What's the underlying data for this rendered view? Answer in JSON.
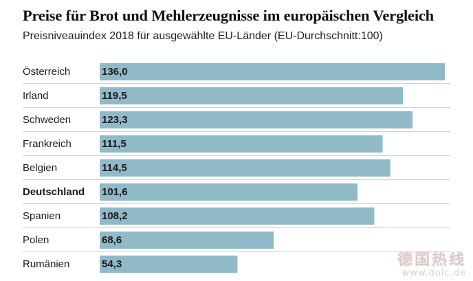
{
  "chart_data": {
    "type": "bar",
    "orientation": "horizontal",
    "title": "Preise für Brot und Mehlerzeugnisse im europäischen Vergleich",
    "subtitle": "Preisniveauindex 2018 für ausgewählte EU-Länder (EU-Durchschnitt:100)",
    "categories": [
      "Österreich",
      "Irland",
      "Schweden",
      "Frankreich",
      "Belgien",
      "Deutschland",
      "Spanien",
      "Polen",
      "Rumänien"
    ],
    "values": [
      136.0,
      119.5,
      123.3,
      111.5,
      114.5,
      101.6,
      108.2,
      68.6,
      54.3
    ],
    "value_labels": [
      "136,0",
      "119,5",
      "123,3",
      "111,5",
      "114,5",
      "101,6",
      "108,2",
      "68,6",
      "54,3"
    ],
    "highlight": "Deutschland",
    "xlim": [
      0,
      136.0
    ],
    "bar_color": "#90bac8",
    "separator_color": "#d4d4d4",
    "text_color": "#1a1a1a"
  },
  "watermark": {
    "logo": "德国热线",
    "url": "www.dolc.de"
  }
}
